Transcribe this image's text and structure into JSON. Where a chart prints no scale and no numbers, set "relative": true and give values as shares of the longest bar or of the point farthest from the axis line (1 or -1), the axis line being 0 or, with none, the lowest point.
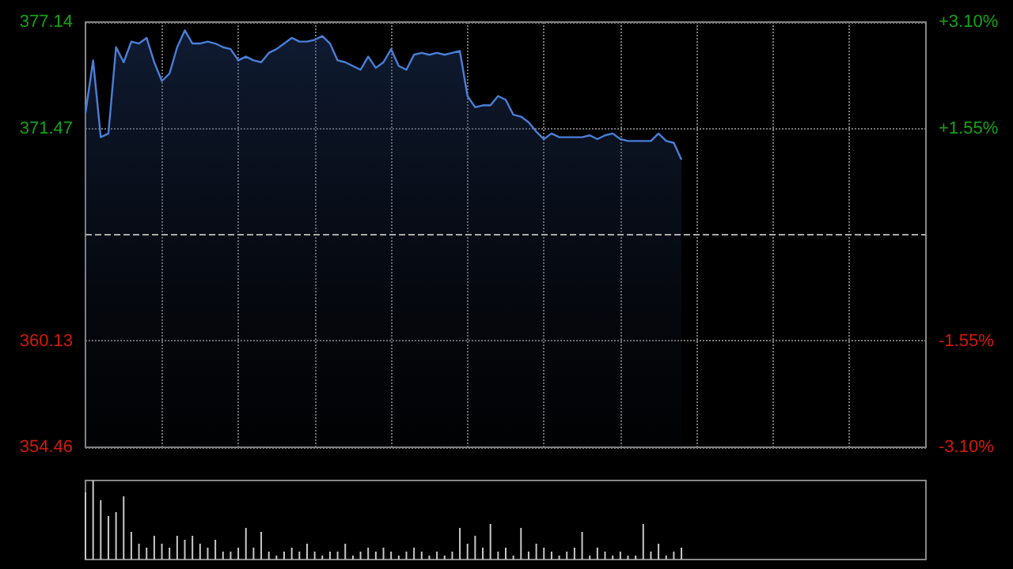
{
  "chart_data": [
    {
      "type": "area",
      "categories": [
        null,
        null,
        null,
        null,
        null,
        null,
        null,
        null,
        null,
        null,
        null,
        null,
        null,
        null,
        null,
        null,
        null,
        null,
        null,
        null,
        null,
        null,
        null,
        null,
        null,
        null,
        null,
        null,
        null,
        null,
        null,
        null,
        null,
        null,
        null,
        null,
        null,
        null,
        null,
        null,
        null,
        null,
        null,
        null,
        null,
        null,
        null,
        null,
        null,
        null,
        null,
        null,
        null,
        null,
        null,
        null,
        null,
        null,
        null,
        null,
        null,
        null,
        null,
        null,
        null,
        null,
        null,
        null,
        null,
        null,
        null,
        null,
        null,
        null,
        null,
        null,
        null,
        null,
        null,
        null,
        null,
        null,
        null,
        null,
        null,
        null,
        null,
        null,
        null,
        null,
        null,
        null,
        null,
        null,
        null,
        null,
        null,
        null,
        null,
        null,
        null,
        null,
        null,
        null,
        null,
        null,
        null,
        null,
        null,
        null,
        null
      ],
      "series": [
        {
          "color": "#4a7fd8",
          "values": [
            372.3,
            375.1,
            371.0,
            371.2,
            375.8,
            375.0,
            376.1,
            376.0,
            376.3,
            375.0,
            374.0,
            374.4,
            375.8,
            376.7,
            376.0,
            376.0,
            376.1,
            376.0,
            375.8,
            375.7,
            375.1,
            375.3,
            375.1,
            375.0,
            375.5,
            375.7,
            376.0,
            376.3,
            376.1,
            376.1,
            376.2,
            376.4,
            376.0,
            375.1,
            375.0,
            374.8,
            374.6,
            375.3,
            374.7,
            375.0,
            375.7,
            374.8,
            374.6,
            375.4,
            375.5,
            375.4,
            375.5,
            375.4,
            375.5,
            375.6,
            373.2,
            372.6,
            372.7,
            372.7,
            373.2,
            373.0,
            372.2,
            372.1,
            371.8,
            371.3,
            370.9,
            371.2,
            371.0,
            371.0,
            371.0,
            371.0,
            371.1,
            370.9,
            371.1,
            371.2,
            370.9,
            370.8,
            370.8,
            370.8,
            370.8,
            371.2,
            370.8,
            370.7,
            369.8,
            null,
            null,
            null,
            null,
            null,
            null,
            null,
            null,
            null,
            null,
            null,
            null,
            null,
            null,
            null,
            null,
            null,
            null,
            null,
            null,
            null,
            null,
            null,
            null,
            null,
            null,
            null,
            null,
            null,
            null,
            null,
            null
          ]
        }
      ],
      "ylim": [
        354.46,
        377.14
      ],
      "yticks": [
        354.46,
        360.13,
        371.47,
        377.14
      ],
      "y2lim": [
        -3.1,
        3.1
      ],
      "y2ticks": [
        {
          "value": -3.1,
          "label": "-3.10%"
        },
        {
          "value": -1.55,
          "label": "-1.55%"
        },
        {
          "value": 1.55,
          "label": "+1.55%"
        },
        {
          "value": 3.1,
          "label": "+3.10%"
        }
      ],
      "ref_lines": [
        {
          "axis": "y",
          "value": 365.8,
          "color": "#aaaaaa",
          "line_style": "dashed"
        }
      ],
      "grid": true
    },
    {
      "type": "bar",
      "relative": true,
      "categories": [
        null,
        null,
        null,
        null,
        null,
        null,
        null,
        null,
        null,
        null,
        null,
        null,
        null,
        null,
        null,
        null,
        null,
        null,
        null,
        null,
        null,
        null,
        null,
        null,
        null,
        null,
        null,
        null,
        null,
        null,
        null,
        null,
        null,
        null,
        null,
        null,
        null,
        null,
        null,
        null,
        null,
        null,
        null,
        null,
        null,
        null,
        null,
        null,
        null,
        null,
        null,
        null,
        null,
        null,
        null,
        null,
        null,
        null,
        null,
        null,
        null,
        null,
        null,
        null,
        null,
        null,
        null,
        null,
        null,
        null,
        null,
        null,
        null,
        null,
        null,
        null,
        null,
        null,
        null,
        null,
        null,
        null,
        null,
        null,
        null,
        null,
        null,
        null,
        null,
        null,
        null,
        null,
        null,
        null,
        null,
        null,
        null,
        null,
        null,
        null,
        null,
        null,
        null,
        null,
        null,
        null,
        null,
        null,
        null,
        null,
        null
      ],
      "series": [
        {
          "color": "#c8c8c8",
          "values": [
            0.85,
            1.0,
            0.75,
            0.55,
            0.6,
            0.8,
            0.35,
            0.2,
            0.15,
            0.3,
            0.2,
            0.15,
            0.3,
            0.25,
            0.3,
            0.2,
            0.15,
            0.25,
            0.1,
            0.1,
            0.15,
            0.4,
            0.15,
            0.35,
            0.1,
            0.05,
            0.1,
            0.15,
            0.1,
            0.2,
            0.1,
            0.05,
            0.1,
            0.1,
            0.2,
            0.05,
            0.1,
            0.15,
            0.1,
            0.15,
            0.1,
            0.05,
            0.1,
            0.15,
            0.1,
            0.05,
            0.1,
            0.05,
            0.1,
            0.4,
            0.2,
            0.3,
            0.15,
            0.45,
            0.1,
            0.15,
            0.05,
            0.4,
            0.1,
            0.2,
            0.15,
            0.1,
            0.05,
            0.1,
            0.15,
            0.35,
            0.05,
            0.15,
            0.1,
            0.05,
            0.1,
            0.05,
            0.05,
            0.45,
            0.1,
            0.2,
            0.05,
            0.1,
            0.15,
            null,
            null,
            null,
            null,
            null,
            null,
            null,
            null,
            null,
            null,
            null,
            null,
            null,
            null,
            null,
            null,
            null,
            null,
            null,
            null,
            null,
            null,
            null,
            null,
            null,
            null,
            null,
            null,
            null,
            null,
            null,
            null
          ]
        }
      ],
      "grid": false
    }
  ]
}
